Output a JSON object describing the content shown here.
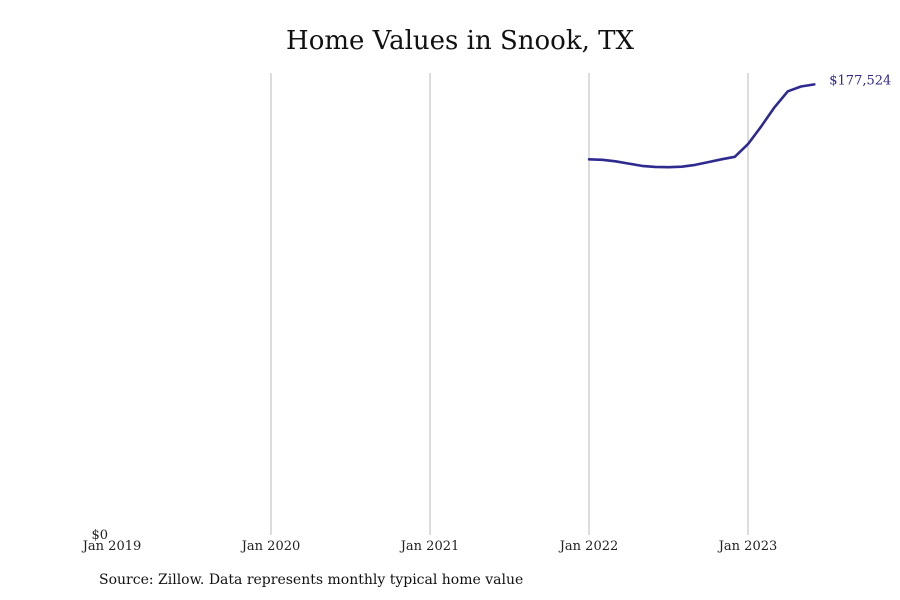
{
  "chart_data": {
    "type": "line",
    "title": "Home Values in Snook, TX",
    "xlabel": "",
    "ylabel": "",
    "x_ticks": [
      "Jan 2019",
      "Jan 2020",
      "Jan 2021",
      "Jan 2022",
      "Jan 2023"
    ],
    "y_ticks": [
      "$0"
    ],
    "xlim": [
      "2019-01",
      "2023-12"
    ],
    "ylim": [
      0,
      182000
    ],
    "grid": "vertical",
    "series": [
      {
        "name": "",
        "color": "#2e2a8f",
        "points": [
          {
            "x": "2022-01",
            "y": 148000
          },
          {
            "x": "2022-02",
            "y": 147800
          },
          {
            "x": "2022-03",
            "y": 147200
          },
          {
            "x": "2022-04",
            "y": 146300
          },
          {
            "x": "2022-05",
            "y": 145400
          },
          {
            "x": "2022-06",
            "y": 145000
          },
          {
            "x": "2022-07",
            "y": 144900
          },
          {
            "x": "2022-08",
            "y": 145100
          },
          {
            "x": "2022-09",
            "y": 145800
          },
          {
            "x": "2022-10",
            "y": 146900
          },
          {
            "x": "2022-11",
            "y": 148000
          },
          {
            "x": "2022-12",
            "y": 149000
          },
          {
            "x": "2023-01",
            "y": 154000
          },
          {
            "x": "2023-02",
            "y": 161000
          },
          {
            "x": "2023-03",
            "y": 168500
          },
          {
            "x": "2023-04",
            "y": 174800
          },
          {
            "x": "2023-05",
            "y": 176700
          },
          {
            "x": "2023-06",
            "y": 177524
          }
        ]
      }
    ],
    "end_label": "$177,524",
    "source": "Source: Zillow. Data represents monthly typical home value"
  }
}
